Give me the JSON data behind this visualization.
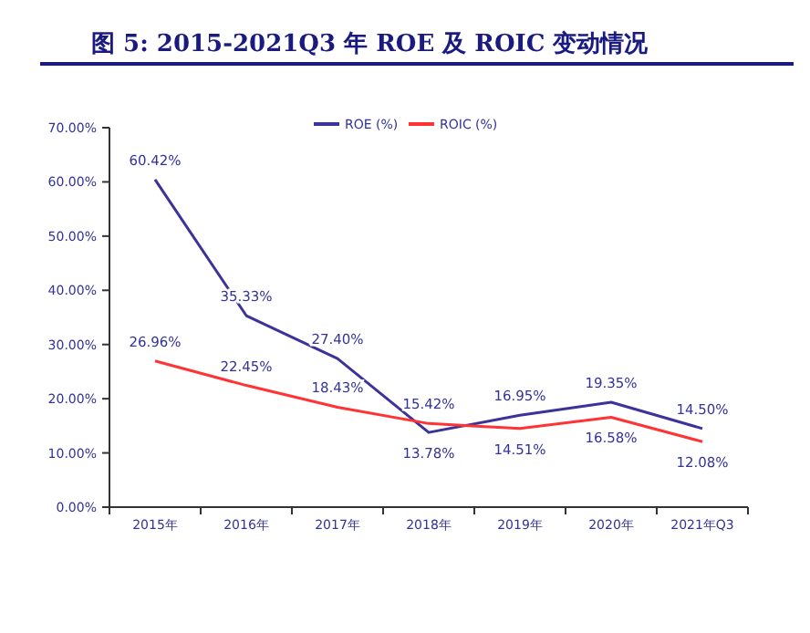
{
  "chart_data": {
    "type": "line",
    "title": "图 5: 2015-2021Q3 年 ROE 及 ROIC 变动情况",
    "categories": [
      "2015年",
      "2016年",
      "2017年",
      "2018年",
      "2019年",
      "2020年",
      "2021年Q3"
    ],
    "series": [
      {
        "name": "ROE (%)",
        "color": "#3b3399",
        "values": [
          60.42,
          35.33,
          27.4,
          13.78,
          16.95,
          19.35,
          14.5
        ],
        "value_labels": [
          "60.42%",
          "35.33%",
          "27.40%",
          "13.78%",
          "16.95%",
          "19.35%",
          "14.50%"
        ]
      },
      {
        "name": "ROIC (%)",
        "color": "#ff3333",
        "values": [
          26.96,
          22.45,
          18.43,
          15.42,
          14.51,
          16.58,
          12.08
        ],
        "value_labels": [
          "26.96%",
          "22.45%",
          "18.43%",
          "15.42%",
          "14.51%",
          "16.58%",
          "12.08%"
        ]
      }
    ],
    "ylim": [
      0,
      70
    ],
    "yticks": [
      {
        "value": 0,
        "label": "0.00%"
      },
      {
        "value": 10,
        "label": "10.00%"
      },
      {
        "value": 20,
        "label": "20.00%"
      },
      {
        "value": 30,
        "label": "30.00%"
      },
      {
        "value": 40,
        "label": "40.00%"
      },
      {
        "value": 50,
        "label": "50.00%"
      },
      {
        "value": 60,
        "label": "60.00%"
      },
      {
        "value": 70,
        "label": "70.00%"
      }
    ],
    "legend": "top",
    "grid": false,
    "marker": "none",
    "line_style": "solid"
  }
}
